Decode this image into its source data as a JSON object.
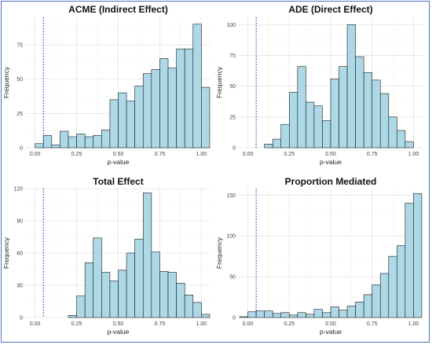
{
  "chart_data": [
    {
      "type": "bar",
      "title": "ACME (Indirect Effect)",
      "xlabel": "p-value",
      "ylabel": "Frequency",
      "xlim": [
        0,
        1
      ],
      "ylim": [
        0,
        95
      ],
      "xticks": [
        "0.00",
        "0.25",
        "0.50",
        "0.75",
        "1.00"
      ],
      "yticks": [
        "0",
        "25",
        "50",
        "75"
      ],
      "ytick_values": [
        0,
        25,
        50,
        75
      ],
      "ref_line_x": 0.05,
      "bins": [
        [
          0.0,
          0.05,
          3
        ],
        [
          0.05,
          0.1,
          9
        ],
        [
          0.1,
          0.15,
          2
        ],
        [
          0.15,
          0.2,
          12
        ],
        [
          0.2,
          0.25,
          8
        ],
        [
          0.25,
          0.3,
          10
        ],
        [
          0.3,
          0.35,
          8
        ],
        [
          0.35,
          0.4,
          9
        ],
        [
          0.4,
          0.45,
          13
        ],
        [
          0.45,
          0.5,
          35
        ],
        [
          0.5,
          0.55,
          40
        ],
        [
          0.55,
          0.6,
          34
        ],
        [
          0.6,
          0.65,
          45
        ],
        [
          0.65,
          0.7,
          54
        ],
        [
          0.7,
          0.75,
          57
        ],
        [
          0.75,
          0.8,
          65
        ],
        [
          0.8,
          0.85,
          58
        ],
        [
          0.85,
          0.9,
          72
        ],
        [
          0.9,
          0.95,
          72
        ],
        [
          0.95,
          1.0,
          90
        ],
        [
          1.0,
          1.05,
          44
        ]
      ],
      "bar_color": "#add8e6",
      "ref_color": "#3a3ad0"
    },
    {
      "type": "bar",
      "title": "ADE (Direct Effect)",
      "xlabel": "p-value",
      "ylabel": "Frequency",
      "xlim": [
        0,
        1
      ],
      "ylim": [
        0,
        106
      ],
      "xticks": [
        "0.00",
        "0.25",
        "0.50",
        "0.75",
        "1.00"
      ],
      "yticks": [
        "0",
        "25",
        "50",
        "75",
        "100"
      ],
      "ytick_values": [
        0,
        25,
        50,
        75,
        100
      ],
      "ref_line_x": 0.05,
      "bins": [
        [
          0.1,
          0.15,
          3
        ],
        [
          0.15,
          0.2,
          7
        ],
        [
          0.2,
          0.25,
          19
        ],
        [
          0.25,
          0.3,
          45
        ],
        [
          0.3,
          0.35,
          66
        ],
        [
          0.35,
          0.4,
          37
        ],
        [
          0.4,
          0.45,
          34
        ],
        [
          0.45,
          0.5,
          22
        ],
        [
          0.5,
          0.55,
          56
        ],
        [
          0.55,
          0.6,
          66
        ],
        [
          0.6,
          0.65,
          100
        ],
        [
          0.65,
          0.7,
          74
        ],
        [
          0.7,
          0.75,
          61
        ],
        [
          0.75,
          0.8,
          55
        ],
        [
          0.8,
          0.85,
          44
        ],
        [
          0.85,
          0.9,
          25
        ],
        [
          0.9,
          0.95,
          14
        ],
        [
          0.95,
          1.0,
          5
        ]
      ],
      "bar_color": "#add8e6",
      "ref_color": "#3a3ad0"
    },
    {
      "type": "bar",
      "title": "Total Effect",
      "xlabel": "p-value",
      "ylabel": "Frequency",
      "xlim": [
        0,
        1
      ],
      "ylim": [
        0,
        120
      ],
      "xticks": [
        "0.00",
        "0.25",
        "0.50",
        "0.75",
        "1.00"
      ],
      "yticks": [
        "0",
        "30",
        "60",
        "90",
        "120"
      ],
      "ytick_values": [
        0,
        30,
        60,
        90,
        120
      ],
      "ref_line_x": 0.05,
      "bins": [
        [
          0.2,
          0.25,
          2
        ],
        [
          0.25,
          0.3,
          20
        ],
        [
          0.3,
          0.35,
          51
        ],
        [
          0.35,
          0.4,
          74
        ],
        [
          0.4,
          0.45,
          42
        ],
        [
          0.45,
          0.5,
          34
        ],
        [
          0.5,
          0.55,
          44
        ],
        [
          0.55,
          0.6,
          60
        ],
        [
          0.6,
          0.65,
          73
        ],
        [
          0.65,
          0.7,
          116
        ],
        [
          0.7,
          0.75,
          61
        ],
        [
          0.75,
          0.8,
          43
        ],
        [
          0.8,
          0.85,
          42
        ],
        [
          0.85,
          0.9,
          32
        ],
        [
          0.9,
          0.95,
          21
        ],
        [
          0.95,
          1.0,
          14
        ],
        [
          1.0,
          1.05,
          3
        ]
      ],
      "bar_color": "#add8e6",
      "ref_color": "#3a3ad0"
    },
    {
      "type": "bar",
      "title": "Proportion Mediated",
      "xlabel": "p-value",
      "ylabel": "Frequency",
      "xlim": [
        0,
        1
      ],
      "ylim": [
        0,
        158
      ],
      "xticks": [
        "0.00",
        "0.25",
        "0.50",
        "0.75",
        "1.00"
      ],
      "yticks": [
        "0",
        "50",
        "100",
        "150"
      ],
      "ytick_values": [
        0,
        50,
        100,
        150
      ],
      "ref_line_x": 0.05,
      "bins": [
        [
          -0.05,
          0.0,
          1
        ],
        [
          0.0,
          0.05,
          7
        ],
        [
          0.05,
          0.1,
          8
        ],
        [
          0.1,
          0.15,
          8
        ],
        [
          0.15,
          0.2,
          5
        ],
        [
          0.2,
          0.25,
          6
        ],
        [
          0.25,
          0.3,
          3
        ],
        [
          0.3,
          0.35,
          6
        ],
        [
          0.35,
          0.4,
          4
        ],
        [
          0.4,
          0.45,
          10
        ],
        [
          0.45,
          0.5,
          6
        ],
        [
          0.5,
          0.55,
          13
        ],
        [
          0.55,
          0.6,
          9
        ],
        [
          0.6,
          0.65,
          14
        ],
        [
          0.65,
          0.7,
          19
        ],
        [
          0.7,
          0.75,
          28
        ],
        [
          0.75,
          0.8,
          40
        ],
        [
          0.8,
          0.85,
          54
        ],
        [
          0.85,
          0.9,
          75
        ],
        [
          0.9,
          0.95,
          88
        ],
        [
          0.95,
          1.0,
          140
        ],
        [
          1.0,
          1.05,
          152
        ]
      ],
      "bar_color": "#add8e6",
      "ref_color": "#3a3ad0"
    }
  ]
}
